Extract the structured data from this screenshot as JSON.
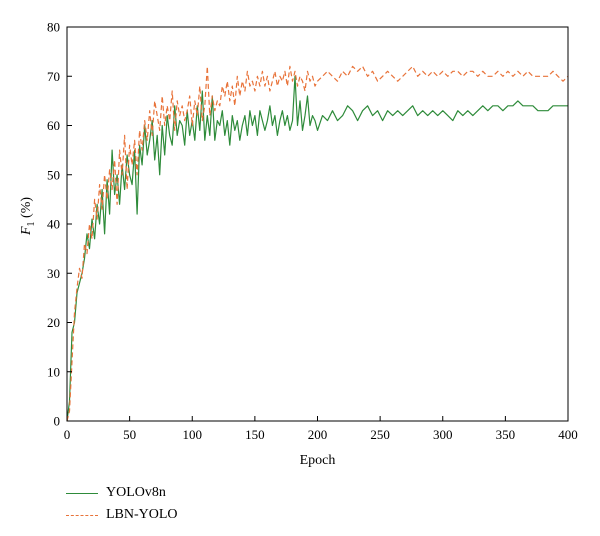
{
  "chart_data": {
    "type": "line",
    "title": "",
    "xlabel": "Epoch",
    "ylabel": {
      "main": "F",
      "sub": "1",
      "rest": " (%)"
    },
    "xlim": [
      0,
      400
    ],
    "ylim": [
      0,
      80
    ],
    "xticks": [
      "0",
      "50",
      "100",
      "150",
      "200",
      "250",
      "300",
      "350",
      "400"
    ],
    "yticks": [
      "0",
      "10",
      "20",
      "30",
      "40",
      "50",
      "60",
      "70",
      "80"
    ],
    "grid": false,
    "legend_position": "bottom-left",
    "series": [
      {
        "name": "YOLOv8n",
        "color": "#2e8b3a",
        "dash": "solid",
        "x": [
          0,
          2,
          4,
          6,
          8,
          10,
          12,
          14,
          16,
          18,
          20,
          22,
          24,
          26,
          28,
          30,
          32,
          34,
          36,
          38,
          40,
          42,
          44,
          46,
          48,
          50,
          52,
          54,
          56,
          58,
          60,
          62,
          64,
          66,
          68,
          70,
          72,
          74,
          76,
          78,
          80,
          82,
          84,
          86,
          88,
          90,
          92,
          94,
          96,
          98,
          100,
          102,
          104,
          106,
          108,
          110,
          112,
          114,
          116,
          118,
          120,
          122,
          124,
          126,
          128,
          130,
          132,
          134,
          136,
          138,
          140,
          142,
          144,
          146,
          148,
          150,
          152,
          154,
          156,
          158,
          160,
          162,
          164,
          166,
          168,
          170,
          172,
          174,
          176,
          178,
          180,
          182,
          184,
          186,
          188,
          190,
          192,
          194,
          196,
          198,
          200,
          204,
          208,
          212,
          216,
          220,
          224,
          228,
          232,
          236,
          240,
          244,
          248,
          252,
          256,
          260,
          264,
          268,
          272,
          276,
          280,
          284,
          288,
          292,
          296,
          300,
          304,
          308,
          312,
          316,
          320,
          324,
          328,
          332,
          336,
          340,
          344,
          348,
          352,
          356,
          360,
          364,
          368,
          372,
          376,
          380,
          384,
          388,
          392,
          396,
          400
        ],
        "y": [
          0,
          4,
          18,
          20,
          26,
          28,
          30,
          33,
          38,
          35,
          41,
          37,
          44,
          40,
          47,
          38,
          49,
          42,
          55,
          46,
          50,
          44,
          52,
          47,
          54,
          50,
          48,
          55,
          42,
          56,
          52,
          60,
          54,
          57,
          61,
          53,
          58,
          50,
          60,
          54,
          62,
          58,
          56,
          64,
          58,
          61,
          60,
          56,
          63,
          58,
          61,
          57,
          64,
          59,
          67,
          57,
          62,
          58,
          66,
          57,
          61,
          60,
          63,
          58,
          61,
          56,
          62,
          59,
          61,
          57,
          60,
          62,
          58,
          63,
          60,
          62,
          58,
          63,
          61,
          59,
          61,
          64,
          60,
          62,
          58,
          61,
          63,
          60,
          62,
          59,
          61,
          70,
          60,
          65,
          59,
          62,
          66,
          60,
          62,
          61,
          59,
          62,
          61,
          63,
          61,
          62,
          64,
          63,
          61,
          63,
          64,
          62,
          63,
          61,
          63,
          62,
          63,
          62,
          63,
          64,
          62,
          63,
          62,
          63,
          62,
          63,
          62,
          61,
          63,
          62,
          63,
          62,
          63,
          64,
          63,
          64,
          64,
          63,
          64,
          64,
          65,
          64,
          64,
          64,
          63,
          63,
          63,
          64,
          64,
          64,
          64
        ]
      },
      {
        "name": "LBN-YOLO",
        "color": "#e8733a",
        "dash": "dashed",
        "x": [
          0,
          2,
          4,
          6,
          8,
          10,
          12,
          14,
          16,
          18,
          20,
          22,
          24,
          26,
          28,
          30,
          32,
          34,
          36,
          38,
          40,
          42,
          44,
          46,
          48,
          50,
          52,
          54,
          56,
          58,
          60,
          62,
          64,
          66,
          68,
          70,
          72,
          74,
          76,
          78,
          80,
          82,
          84,
          86,
          88,
          90,
          92,
          94,
          96,
          98,
          100,
          102,
          104,
          106,
          108,
          110,
          112,
          114,
          116,
          118,
          120,
          122,
          124,
          126,
          128,
          130,
          132,
          134,
          136,
          138,
          140,
          142,
          144,
          146,
          148,
          150,
          152,
          154,
          156,
          158,
          160,
          162,
          164,
          166,
          168,
          170,
          172,
          174,
          176,
          178,
          180,
          182,
          184,
          186,
          188,
          190,
          192,
          194,
          196,
          198,
          200,
          204,
          208,
          212,
          216,
          220,
          224,
          228,
          232,
          236,
          240,
          244,
          248,
          252,
          256,
          260,
          264,
          268,
          272,
          276,
          280,
          284,
          288,
          292,
          296,
          300,
          304,
          308,
          312,
          316,
          320,
          324,
          328,
          332,
          336,
          340,
          344,
          348,
          352,
          356,
          360,
          364,
          368,
          372,
          376,
          380,
          384,
          388,
          392,
          396,
          400
        ],
        "y": [
          0,
          2,
          12,
          22,
          27,
          31,
          29,
          36,
          34,
          40,
          37,
          45,
          41,
          48,
          43,
          50,
          45,
          51,
          47,
          53,
          44,
          55,
          50,
          58,
          47,
          56,
          52,
          57,
          50,
          59,
          55,
          61,
          57,
          63,
          58,
          65,
          62,
          59,
          66,
          60,
          64,
          61,
          67,
          59,
          65,
          62,
          64,
          61,
          63,
          66,
          60,
          65,
          62,
          68,
          61,
          64,
          72,
          62,
          66,
          63,
          65,
          64,
          68,
          66,
          69,
          65,
          68,
          64,
          70,
          66,
          69,
          67,
          71,
          68,
          69,
          67,
          70,
          68,
          71,
          68,
          70,
          67,
          69,
          71,
          68,
          70,
          69,
          71,
          68,
          72,
          69,
          71,
          68,
          70,
          69,
          67,
          71,
          69,
          70,
          68,
          69,
          70,
          71,
          70,
          69,
          71,
          70,
          72,
          71,
          72,
          70,
          71,
          69,
          70,
          71,
          70,
          69,
          70,
          71,
          72,
          70,
          71,
          70,
          71,
          70,
          71,
          70,
          71,
          71,
          70,
          71,
          71,
          70,
          71,
          70,
          70,
          71,
          70,
          71,
          70,
          71,
          70,
          71,
          70,
          70,
          70,
          70,
          71,
          70,
          69,
          70
        ]
      }
    ]
  }
}
